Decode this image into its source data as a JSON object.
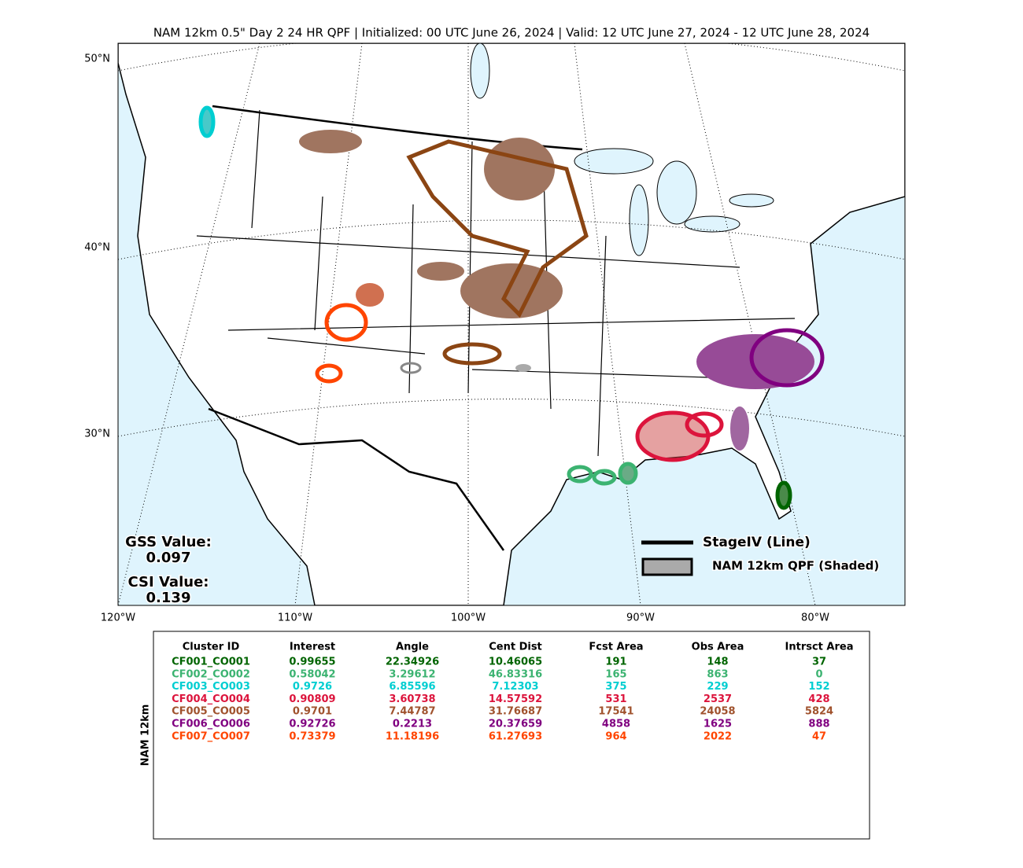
{
  "title": "NAM 12km 0.5\" Day 2 24 HR QPF | Initialized: 00 UTC June 26, 2024 | Valid: 12 UTC June 27, 2024 - 12 UTC June 28, 2024",
  "lat_labels": [
    "50°N",
    "40°N",
    "30°N"
  ],
  "lon_labels": [
    "120°W",
    "110°W",
    "100°W",
    "90°W",
    "80°W"
  ],
  "scores": {
    "gss_label": "GSS Value:",
    "gss_value": "0.097",
    "csi_label": "CSI Value:",
    "csi_value": "0.139"
  },
  "legend": {
    "line": "StageIV (Line)",
    "shaded": "NAM 12km QPF (Shaded)"
  },
  "table": {
    "side_label": "NAM 12km",
    "header": [
      "Cluster ID",
      "Interest",
      "Angle",
      "Cent Dist",
      "Fcst Area",
      "Obs Area",
      "Intrsct Area"
    ],
    "rows": [
      {
        "color": "#006400",
        "cells": [
          "CF001_CO001",
          "0.99655",
          "22.34926",
          "10.46065",
          "191",
          "148",
          "37"
        ]
      },
      {
        "color": "#3cb371",
        "cells": [
          "CF002_CO002",
          "0.58042",
          "3.29612",
          "46.83316",
          "165",
          "863",
          "0"
        ]
      },
      {
        "color": "#00ced1",
        "cells": [
          "CF003_CO003",
          "0.9726",
          "6.85596",
          "7.12303",
          "375",
          "229",
          "152"
        ]
      },
      {
        "color": "#dc143c",
        "cells": [
          "CF004_CO004",
          "0.90809",
          "3.60738",
          "14.57592",
          "531",
          "2537",
          "428"
        ]
      },
      {
        "color": "#a0522d",
        "cells": [
          "CF005_CO005",
          "0.9701",
          "7.44787",
          "31.76687",
          "17541",
          "24058",
          "5824"
        ]
      },
      {
        "color": "#800080",
        "cells": [
          "CF006_CO006",
          "0.92726",
          "0.2213",
          "20.37659",
          "4858",
          "1625",
          "888"
        ]
      },
      {
        "color": "#ff4500",
        "cells": [
          "CF007_CO007",
          "0.73379",
          "11.18196",
          "61.27693",
          "964",
          "2022",
          "47"
        ]
      }
    ]
  }
}
